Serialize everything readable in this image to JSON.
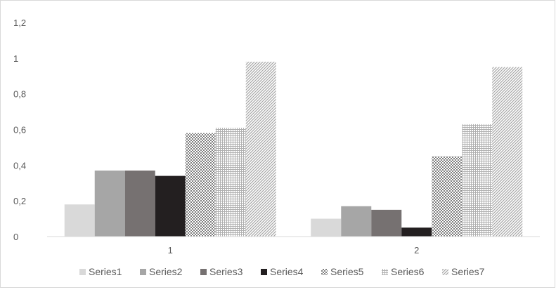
{
  "chart_data": {
    "type": "bar",
    "title": "",
    "xlabel": "",
    "ylabel": "",
    "categories": [
      "1",
      "2"
    ],
    "ylim": [
      0,
      1.2
    ],
    "yticks": [
      0,
      0.2,
      0.4,
      0.6,
      0.8,
      1,
      1.2
    ],
    "ytick_labels": [
      "0",
      "0,2",
      "0,4",
      "0,6",
      "0,8",
      "1",
      "1,2"
    ],
    "grid": false,
    "legend_position": "bottom",
    "series": [
      {
        "name": "Series1",
        "values": [
          0.18,
          0.1
        ],
        "color": "#d9d9d9",
        "pattern": "solid"
      },
      {
        "name": "Series2",
        "values": [
          0.37,
          0.17
        ],
        "color": "#a6a6a6",
        "pattern": "solid"
      },
      {
        "name": "Series3",
        "values": [
          0.37,
          0.15
        ],
        "color": "#767171",
        "pattern": "solid"
      },
      {
        "name": "Series4",
        "values": [
          0.34,
          0.05
        ],
        "color": "#231f20",
        "pattern": "solid"
      },
      {
        "name": "Series5",
        "values": [
          0.58,
          0.45
        ],
        "color": "#808080",
        "pattern": "checker"
      },
      {
        "name": "Series6",
        "values": [
          0.61,
          0.63
        ],
        "color": "#a6a6a6",
        "pattern": "grid"
      },
      {
        "name": "Series7",
        "values": [
          0.98,
          0.95
        ],
        "color": "#a6a6a6",
        "pattern": "diagonal"
      }
    ]
  }
}
